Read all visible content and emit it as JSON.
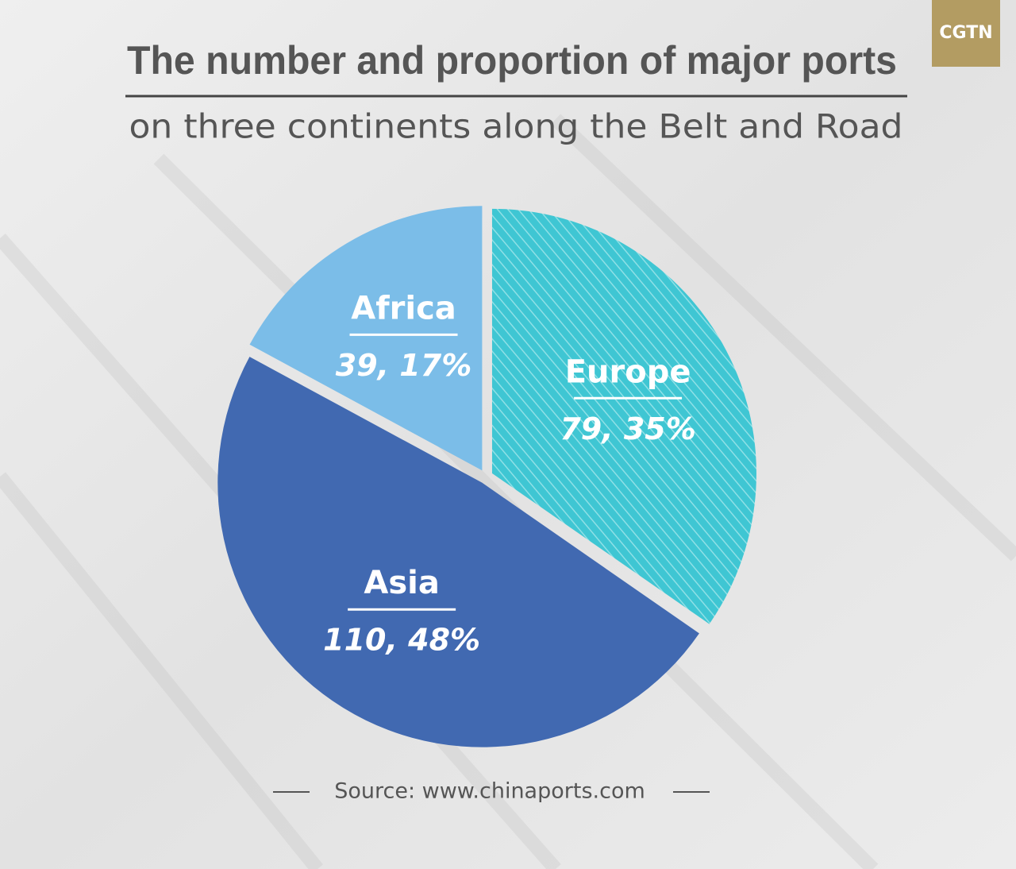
{
  "chart_data": {
    "type": "pie",
    "title": "The number and proportion of major ports",
    "subtitle": "on three continents along the Belt and Road",
    "categories": [
      "Europe",
      "Asia",
      "Africa"
    ],
    "values": [
      79,
      110,
      39
    ],
    "value_labels": [
      "79, 35%",
      "110, 48%",
      "39, 17%"
    ],
    "colors": [
      "#3fc6d3",
      "#4169b1",
      "#7bbde8"
    ],
    "source": "Source: www.chinaports.com",
    "logo": "CGTN"
  }
}
